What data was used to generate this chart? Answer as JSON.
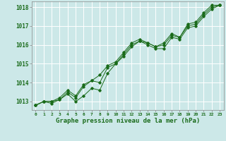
{
  "background_color": "#cce8e8",
  "grid_color": "#aed4d4",
  "line_color": "#1a6b1a",
  "marker_color": "#1a6b1a",
  "xlabel": "Graphe pression niveau de la mer (hPa)",
  "xlim": [
    -0.5,
    23.5
  ],
  "ylim": [
    1012.55,
    1018.3
  ],
  "yticks": [
    1013,
    1014,
    1015,
    1016,
    1017,
    1018
  ],
  "xticks": [
    0,
    1,
    2,
    3,
    4,
    5,
    6,
    7,
    8,
    9,
    10,
    11,
    12,
    13,
    14,
    15,
    16,
    17,
    18,
    19,
    20,
    21,
    22,
    23
  ],
  "series": [
    [
      1012.8,
      1013.0,
      1013.0,
      1013.1,
      1013.5,
      1013.2,
      1013.8,
      1014.1,
      1014.0,
      1014.8,
      1015.0,
      1015.5,
      1016.0,
      1016.2,
      1016.1,
      1015.9,
      1016.0,
      1016.5,
      1016.4,
      1017.0,
      1017.1,
      1017.6,
      1018.0,
      1018.1
    ],
    [
      1012.8,
      1013.0,
      1013.0,
      1013.2,
      1013.6,
      1013.3,
      1013.9,
      1014.1,
      1014.4,
      1014.9,
      1015.1,
      1015.6,
      1016.1,
      1016.3,
      1016.1,
      1015.9,
      1016.1,
      1016.6,
      1016.4,
      1017.1,
      1017.2,
      1017.7,
      1018.1,
      1018.1
    ],
    [
      1012.8,
      1013.0,
      1012.9,
      1013.1,
      1013.4,
      1013.0,
      1013.3,
      1013.7,
      1013.6,
      1014.5,
      1015.0,
      1015.4,
      1015.9,
      1016.2,
      1016.0,
      1015.8,
      1015.8,
      1016.4,
      1016.3,
      1016.9,
      1017.0,
      1017.5,
      1017.9,
      1018.1
    ]
  ]
}
